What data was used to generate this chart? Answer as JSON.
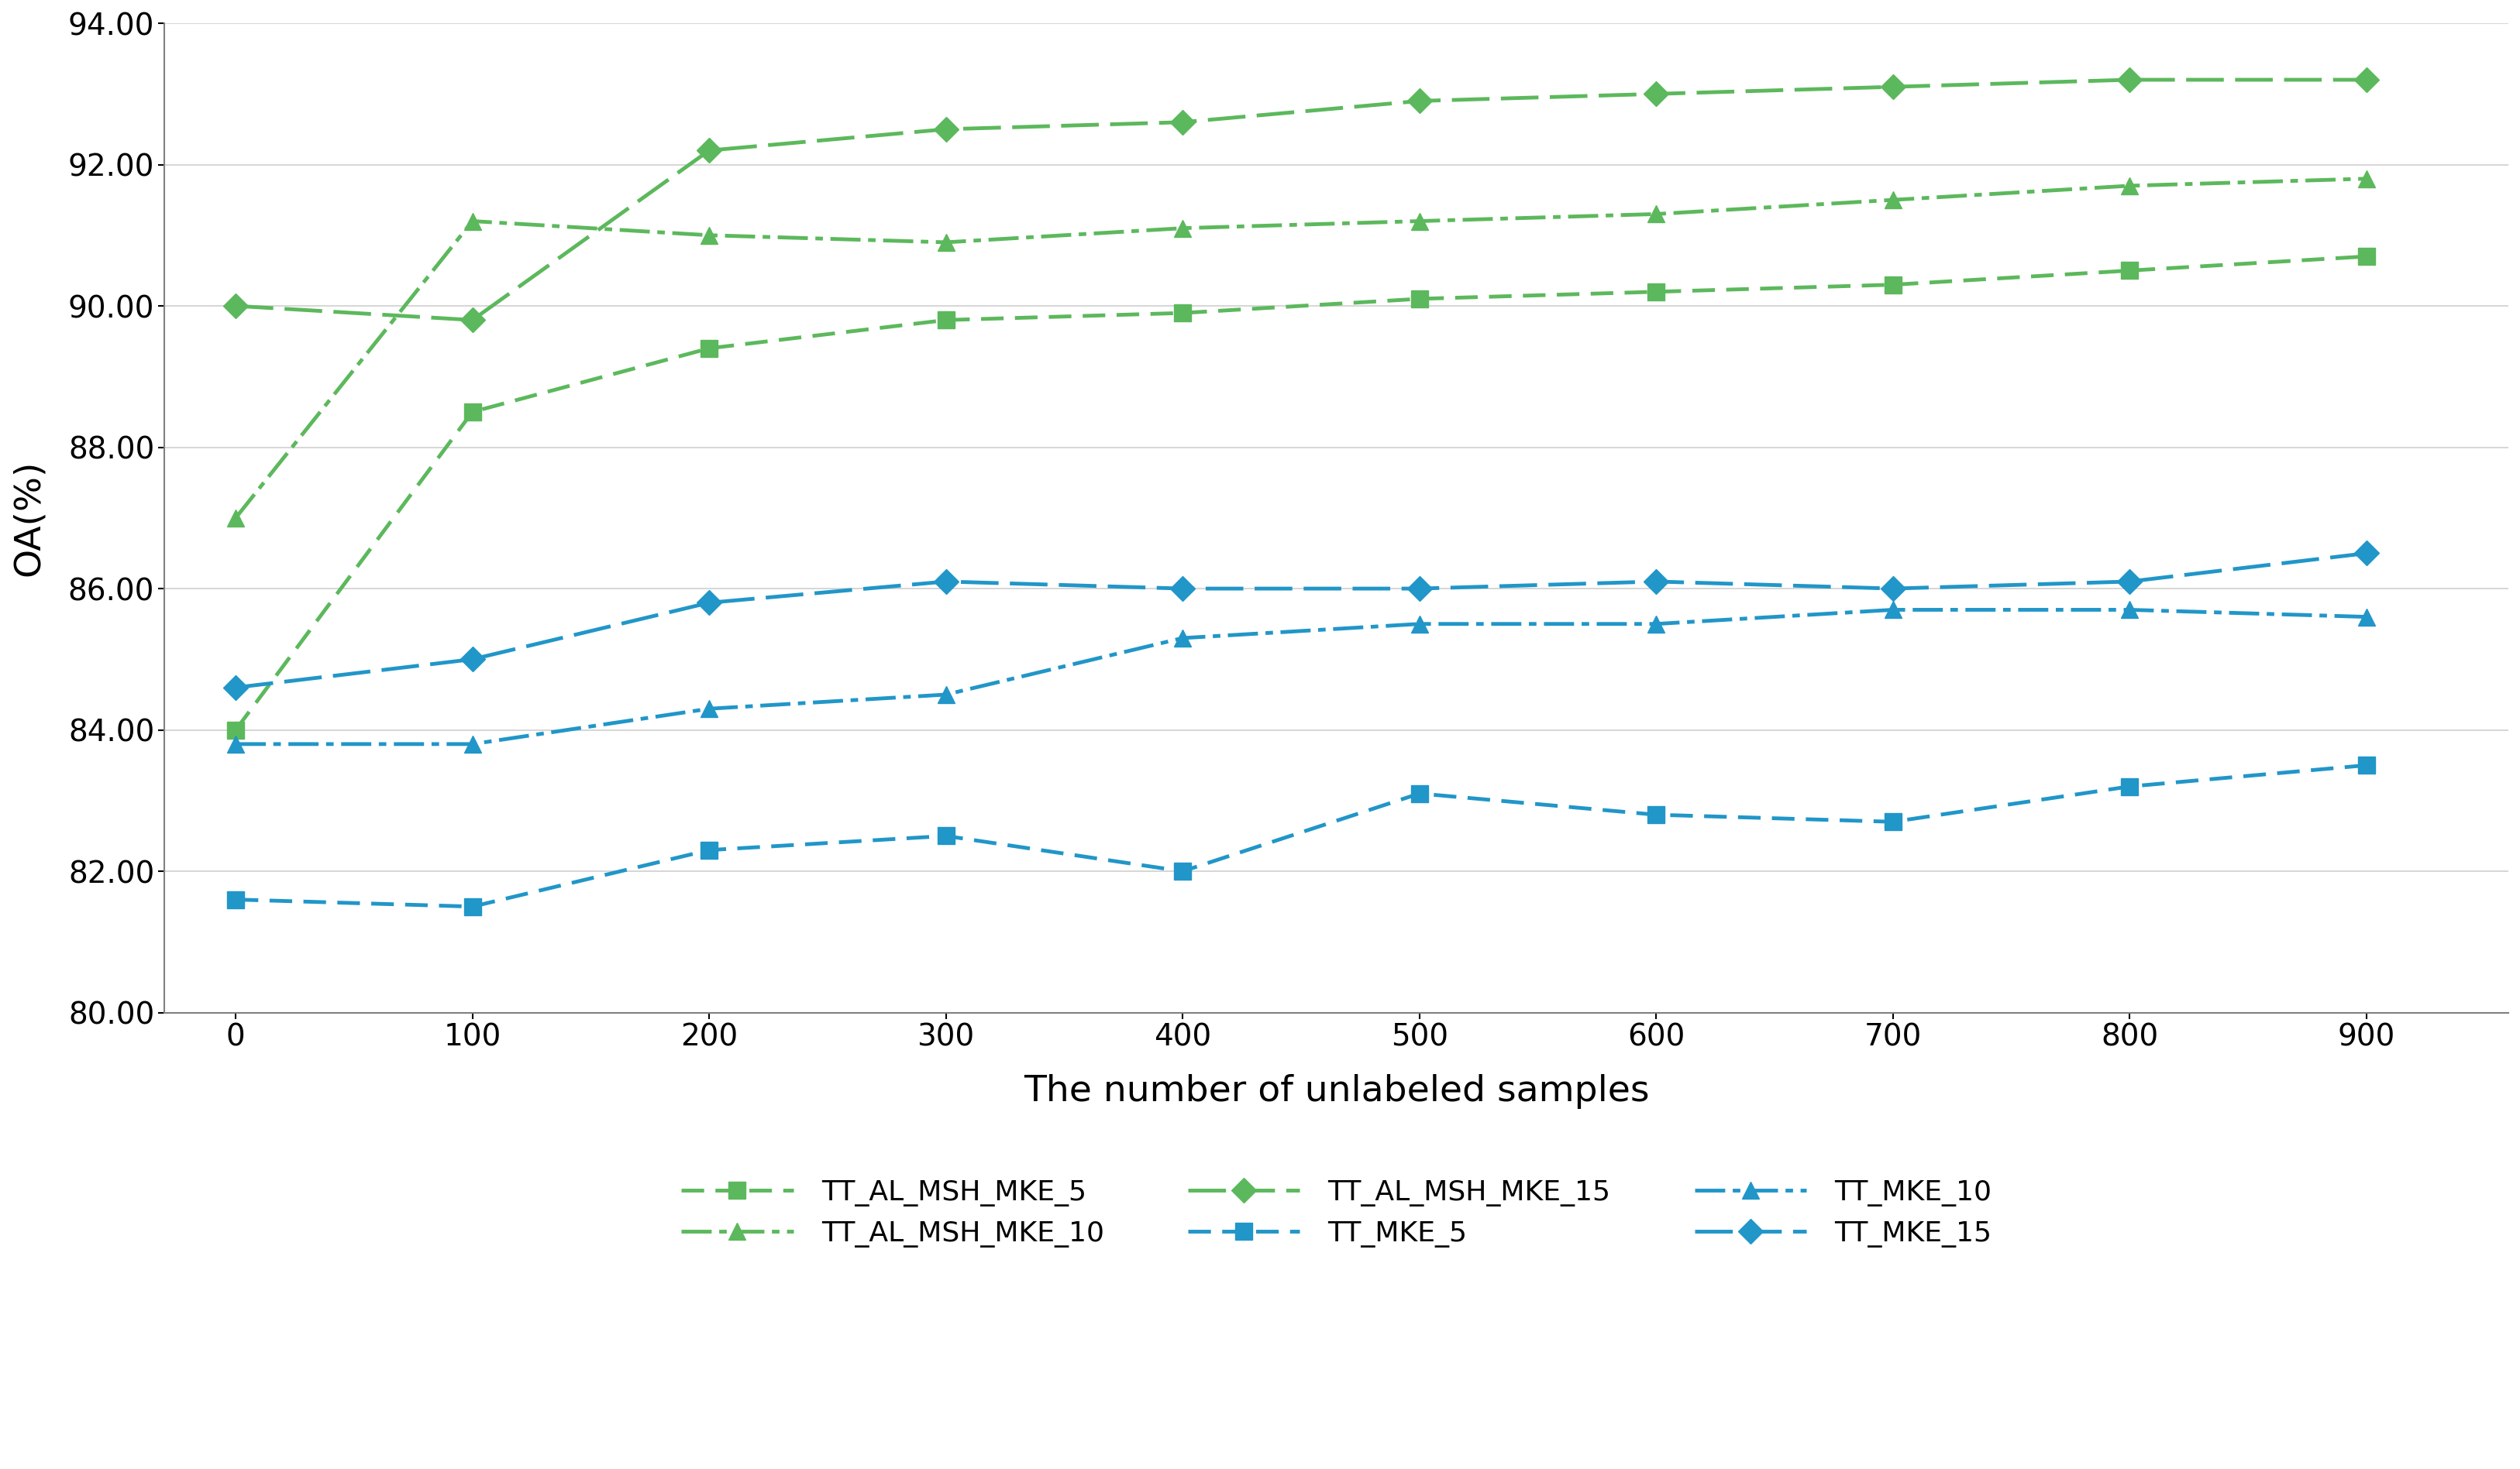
{
  "x": [
    0,
    100,
    200,
    300,
    400,
    500,
    600,
    700,
    800,
    900
  ],
  "TT_AL_MSH_MKE_5": [
    84.0,
    88.5,
    89.4,
    89.8,
    89.9,
    90.1,
    90.2,
    90.3,
    90.5,
    90.7
  ],
  "TT_AL_MSH_MKE_10": [
    87.0,
    91.2,
    91.0,
    90.9,
    91.1,
    91.2,
    91.3,
    91.5,
    91.7,
    91.8
  ],
  "TT_AL_MSH_MKE_15": [
    90.0,
    89.8,
    92.2,
    92.5,
    92.6,
    92.9,
    93.0,
    93.1,
    93.2,
    93.2
  ],
  "TT_MKE_5": [
    81.6,
    81.5,
    82.3,
    82.5,
    82.0,
    83.1,
    82.8,
    82.7,
    83.2,
    83.5
  ],
  "TT_MKE_10": [
    83.8,
    83.8,
    84.3,
    84.5,
    85.3,
    85.5,
    85.5,
    85.7,
    85.7,
    85.6
  ],
  "TT_MKE_15": [
    84.6,
    85.0,
    85.8,
    86.1,
    86.0,
    86.0,
    86.1,
    86.0,
    86.1,
    86.5
  ],
  "green_color": "#5cb85c",
  "blue_color": "#2196c8",
  "xlabel": "The number of unlabeled samples",
  "ylabel": "OA(%)",
  "ylim": [
    80.0,
    94.0
  ],
  "yticks": [
    80.0,
    82.0,
    84.0,
    86.0,
    88.0,
    90.0,
    92.0,
    94.0
  ],
  "xticks": [
    0,
    100,
    200,
    300,
    400,
    500,
    600,
    700,
    800,
    900
  ],
  "legend_row1": [
    "TT_AL_MSH_MKE_5",
    "TT_AL_MSH_MKE_10",
    "TT_AL_MSH_MKE_15"
  ],
  "legend_row2": [
    "TT_MKE_5",
    "TT_MKE_10",
    "TT_MKE_15"
  ]
}
